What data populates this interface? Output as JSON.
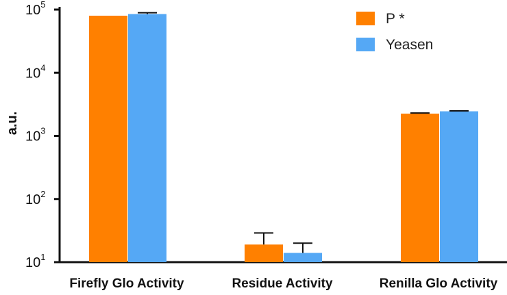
{
  "chart_data": {
    "type": "bar",
    "title": "",
    "xlabel": "",
    "ylabel": "a.u.",
    "yscale": "log",
    "ylim": [
      10,
      100000
    ],
    "yticks": [
      {
        "base": "10",
        "exp": "1",
        "value": 10
      },
      {
        "base": "10",
        "exp": "2",
        "value": 100
      },
      {
        "base": "10",
        "exp": "3",
        "value": 1000
      },
      {
        "base": "10",
        "exp": "4",
        "value": 10000
      },
      {
        "base": "10",
        "exp": "5",
        "value": 100000
      }
    ],
    "categories": [
      "Firefly Glo Activity",
      "Residue Activity",
      "Renilla Glo Activity"
    ],
    "series": [
      {
        "name": "P *",
        "color": "#ff8000",
        "values": [
          80000,
          19,
          2250
        ],
        "errors": [
          0,
          10,
          50
        ]
      },
      {
        "name": "Yeasen",
        "color": "#55a8f5",
        "values": [
          85000,
          14,
          2450
        ],
        "errors": [
          4000,
          6,
          40
        ]
      }
    ],
    "grid": false,
    "legend": {
      "position": "top-right"
    }
  }
}
